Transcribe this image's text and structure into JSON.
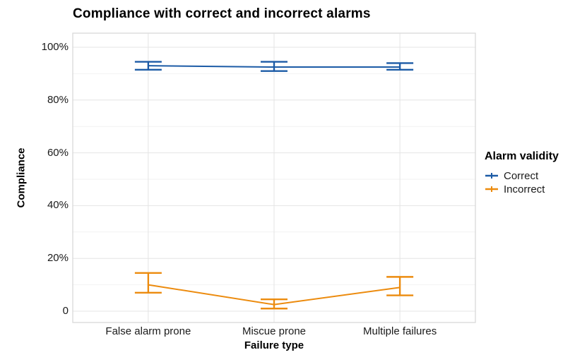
{
  "chart_data": {
    "type": "line",
    "title": "Compliance with correct and incorrect alarms",
    "xlabel": "Failure type",
    "ylabel": "Compliance",
    "categories": [
      "False alarm prone",
      "Miscue prone",
      "Multiple failures"
    ],
    "y_ticks": [
      0,
      20,
      40,
      60,
      80,
      100
    ],
    "y_tick_labels": [
      "0",
      "20%",
      "40%",
      "60%",
      "80%",
      "100%"
    ],
    "y_minor_ticks": [
      10,
      30,
      50,
      70,
      90
    ],
    "ylim": [
      -4.3,
      105.3
    ],
    "grid": true,
    "legend_position": "right",
    "legend_title": "Alarm validity",
    "series": [
      {
        "name": "Correct",
        "color": "#1C5BA6",
        "values": [
          93,
          92.5,
          92.5
        ],
        "ci_low": [
          91.5,
          91,
          91.5
        ],
        "ci_high": [
          94.5,
          94.5,
          94
        ]
      },
      {
        "name": "Incorrect",
        "color": "#EC8B0E",
        "values": [
          10,
          2.5,
          9
        ],
        "ci_low": [
          7,
          1,
          6
        ],
        "ci_high": [
          14.5,
          4.5,
          13
        ]
      }
    ],
    "panel_colors": {
      "background": "#ffffff",
      "grid_major": "#e4e4e4",
      "grid_minor": "#f2f2f2",
      "border": "#d9d9d9"
    }
  }
}
